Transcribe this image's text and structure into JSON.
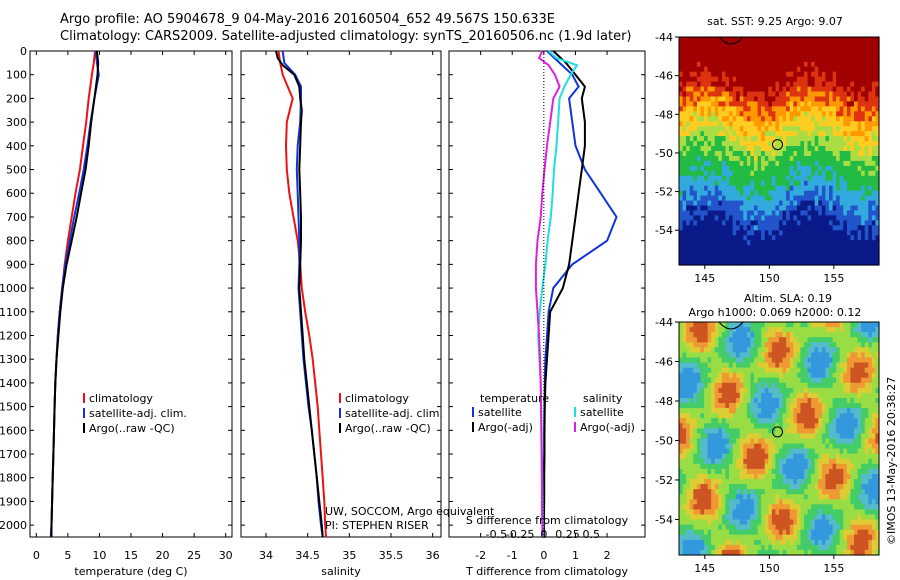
{
  "header": {
    "line1": "Argo profile: AO 5904678_9 04-May-2016 20160504_652 49.567S 150.633E",
    "line2": "Climatology: CARS2009. Satellite-adjusted climatology: synTS_20160506.nc (1.9d later)"
  },
  "footer": {
    "credit1": "UW, SOCCOM, Argo equivalent",
    "credit2": "PI: STEPHEN RISER",
    "stamp": "©IMOS 13-May-2016 20:38:27"
  },
  "colors": {
    "climatology": "#ee1111",
    "satellite": "#1133dd",
    "argo": "#000000",
    "satellite_salinity": "#22dddd",
    "argo_salinity": "#dd22dd"
  },
  "chart_data": [
    {
      "type": "line",
      "id": "temperature",
      "xlabel": "temperature (deg C)",
      "xlim": [
        -1,
        31
      ],
      "xticks": [
        0,
        5,
        10,
        15,
        20,
        25,
        30
      ],
      "ylim": [
        2050,
        0
      ],
      "yticks": [
        0,
        100,
        200,
        300,
        400,
        500,
        600,
        700,
        800,
        900,
        1000,
        1100,
        1200,
        1300,
        1400,
        1500,
        1600,
        1700,
        1800,
        1900,
        2000
      ],
      "legend": {
        "position": "center-left",
        "entries": [
          "climatology",
          "satellite-adj. clim.",
          "Argo(..raw -QC)"
        ]
      },
      "series": [
        {
          "name": "climatology",
          "color": "#ee1111",
          "depth": [
            0,
            50,
            100,
            200,
            300,
            400,
            500,
            600,
            700,
            800,
            900,
            1000,
            1100,
            1200,
            1300,
            1400,
            1500,
            1600,
            1700,
            1800,
            1900,
            2000,
            2050
          ],
          "values": [
            9.3,
            9.1,
            8.8,
            8.3,
            7.9,
            7.4,
            6.9,
            6.2,
            5.6,
            5.0,
            4.5,
            4.1,
            3.7,
            3.4,
            3.2,
            3.0,
            2.9,
            2.8,
            2.7,
            2.6,
            2.5,
            2.4,
            2.3
          ]
        },
        {
          "name": "satellite-adj. clim.",
          "color": "#1133dd",
          "depth": [
            0,
            50,
            100,
            200,
            300,
            400,
            500,
            600,
            700,
            800,
            900,
            1000,
            1100,
            1200,
            1300,
            1400,
            1500,
            1600,
            1700,
            1800,
            1900,
            2000,
            2050
          ],
          "values": [
            9.4,
            9.6,
            9.9,
            9.2,
            8.6,
            8.1,
            7.5,
            6.8,
            6.0,
            5.3,
            4.6,
            4.1,
            3.7,
            3.4,
            3.2,
            3.0,
            2.9,
            2.8,
            2.7,
            2.6,
            2.5,
            2.4,
            2.3
          ]
        },
        {
          "name": "Argo(..raw -QC)",
          "color": "#000000",
          "depth": [
            0,
            50,
            100,
            200,
            300,
            400,
            500,
            600,
            700,
            800,
            900,
            1000,
            1100,
            1200,
            1300,
            1400,
            1500,
            1600,
            1700,
            1800,
            1900,
            2000,
            2050
          ],
          "values": [
            9.6,
            9.8,
            9.7,
            9.2,
            8.7,
            8.3,
            7.8,
            7.1,
            6.4,
            5.6,
            4.8,
            4.2,
            3.8,
            3.5,
            3.2,
            3.0,
            2.9,
            2.8,
            2.7,
            2.6,
            2.5,
            2.4,
            2.4
          ]
        }
      ]
    },
    {
      "type": "line",
      "id": "salinity",
      "xlabel": "salinity",
      "xlim": [
        33.7,
        36.1
      ],
      "xticks": [
        34,
        34.5,
        35,
        35.5,
        36
      ],
      "ylim": [
        2050,
        0
      ],
      "legend": {
        "position": "center-left",
        "entries": [
          "climatology",
          "satellite-adj. clim.",
          "Argo(..raw -QC)"
        ]
      },
      "series": [
        {
          "name": "climatology",
          "color": "#ee1111",
          "depth": [
            0,
            50,
            100,
            150,
            200,
            300,
            400,
            500,
            600,
            700,
            800,
            900,
            1000,
            1100,
            1200,
            1300,
            1400,
            1500,
            1600,
            1700,
            1800,
            1900,
            2000,
            2050
          ],
          "values": [
            34.15,
            34.17,
            34.2,
            34.26,
            34.32,
            34.25,
            34.24,
            34.25,
            34.28,
            34.33,
            34.38,
            34.41,
            34.43,
            34.47,
            34.52,
            34.56,
            34.59,
            34.62,
            34.64,
            34.66,
            34.68,
            34.7,
            34.71,
            34.72
          ]
        },
        {
          "name": "satellite-adj. clim.",
          "color": "#1133dd",
          "depth": [
            0,
            50,
            100,
            150,
            200,
            300,
            400,
            500,
            600,
            700,
            800,
            900,
            1000,
            1100,
            1200,
            1300,
            1400,
            1500,
            1600,
            1700,
            1800,
            1900,
            2000,
            2050
          ],
          "values": [
            34.2,
            34.22,
            34.35,
            34.42,
            34.42,
            34.41,
            34.38,
            34.37,
            34.38,
            34.39,
            34.4,
            34.4,
            34.39,
            34.41,
            34.43,
            34.45,
            34.48,
            34.51,
            34.55,
            34.58,
            34.61,
            34.63,
            34.66,
            34.68
          ]
        },
        {
          "name": "Argo(..raw -QC)",
          "color": "#000000",
          "depth": [
            0,
            30,
            60,
            100,
            150,
            200,
            250,
            300,
            400,
            500,
            600,
            700,
            800,
            900,
            1000,
            1100,
            1200,
            1300,
            1400,
            1500,
            1600,
            1700,
            1800,
            1900,
            2000,
            2050
          ],
          "values": [
            34.12,
            34.14,
            34.2,
            34.34,
            34.4,
            34.41,
            34.43,
            34.42,
            34.41,
            34.4,
            34.41,
            34.42,
            34.42,
            34.41,
            34.4,
            34.42,
            34.44,
            34.46,
            34.49,
            34.52,
            34.55,
            34.58,
            34.61,
            34.64,
            34.67,
            34.68
          ]
        }
      ]
    },
    {
      "type": "line",
      "id": "difference",
      "xlabel": "T difference from climatology",
      "xlabel_top": "S difference from climatology",
      "xlim": [
        -3,
        3.2
      ],
      "xticks": [
        -2,
        -1,
        0,
        1,
        2
      ],
      "xticks_top": [
        {
          "pos": -1.5,
          "label": "-0.5"
        },
        {
          "pos": -0.75,
          "label": "-0.25"
        },
        {
          "pos": 0,
          "label": "0"
        },
        {
          "pos": 0.75,
          "label": "0.25"
        },
        {
          "pos": 1.5,
          "label": "0.5"
        }
      ],
      "ylim": [
        2050,
        0
      ],
      "legend_headings": [
        "temperature",
        "salinity"
      ],
      "legend": {
        "position": "center",
        "entries": [
          "satellite",
          "Argo(-adj)",
          "satellite",
          "Argo(-adj)"
        ]
      },
      "series": [
        {
          "name": "satellite",
          "color": "#1133dd",
          "depth": [
            0,
            50,
            100,
            150,
            200,
            300,
            400,
            500,
            600,
            700,
            800,
            900,
            1000,
            1100,
            1200,
            1300,
            1400,
            1500,
            1600,
            1700,
            1800,
            1900,
            2000,
            2050
          ],
          "values": [
            0.1,
            0.5,
            0.9,
            1.1,
            0.8,
            0.9,
            1.0,
            1.3,
            1.8,
            2.3,
            2.0,
            0.9,
            0.3,
            0.15,
            0.1,
            0.05,
            0.03,
            0.02,
            0.01,
            0.01,
            0.0,
            0.0,
            0.0,
            0.0
          ]
        },
        {
          "name": "Argo(-adj)",
          "color": "#000000",
          "depth": [
            0,
            50,
            100,
            150,
            200,
            300,
            400,
            500,
            600,
            700,
            800,
            900,
            1000,
            1100,
            1200,
            1300,
            1400,
            1500,
            1600,
            1700,
            1800,
            1900,
            2000,
            2050
          ],
          "values": [
            0.3,
            0.7,
            1.0,
            1.3,
            1.2,
            1.3,
            1.3,
            1.2,
            1.1,
            1.0,
            0.9,
            0.8,
            0.6,
            0.2,
            0.15,
            0.1,
            0.05,
            0.03,
            0.02,
            0.02,
            0.01,
            0.01,
            0.0,
            0.0
          ]
        },
        {
          "name": "satellite",
          "color": "#22dddd",
          "depth": [
            0,
            30,
            60,
            100,
            150,
            200,
            300,
            400,
            500,
            600,
            700,
            800,
            900,
            1000,
            1100,
            1200,
            1300,
            1400,
            1500,
            1600,
            1700,
            1800,
            1900,
            2000,
            2050
          ],
          "values": [
            0.15,
            0.4,
            1.05,
            0.85,
            0.65,
            0.5,
            0.45,
            0.4,
            0.32,
            0.28,
            0.22,
            0.12,
            0.05,
            -0.05,
            -0.13,
            -0.18,
            -0.14,
            -0.1,
            -0.08,
            -0.07,
            -0.06,
            -0.05,
            -0.04,
            -0.03,
            -0.03
          ]
        },
        {
          "name": "Argo(-adj)",
          "color": "#dd22dd",
          "depth": [
            0,
            30,
            60,
            100,
            150,
            200,
            300,
            400,
            500,
            600,
            700,
            800,
            900,
            1000,
            1100,
            1200,
            1300,
            1400,
            1500,
            1600,
            1700,
            1800,
            1900,
            2000,
            2050
          ],
          "values": [
            -0.05,
            -0.15,
            0.15,
            0.35,
            0.5,
            0.3,
            0.2,
            0.1,
            0.02,
            -0.05,
            -0.1,
            -0.2,
            -0.25,
            -0.25,
            -0.2,
            -0.15,
            -0.12,
            -0.1,
            -0.09,
            -0.08,
            -0.07,
            -0.06,
            -0.06,
            -0.05,
            -0.05
          ]
        }
      ]
    },
    {
      "type": "heatmap",
      "id": "sst_map",
      "title": "sat. SST: 9.25  Argo: 9.07",
      "xlim": [
        143,
        158.5
      ],
      "ylim": [
        -55.8,
        -44
      ],
      "xticks": [
        145,
        150,
        155
      ],
      "yticks": [
        -44,
        -46,
        -48,
        -50,
        -52,
        -54
      ],
      "marker": {
        "lon": 150.633,
        "lat": -49.567
      }
    },
    {
      "type": "heatmap",
      "id": "sla_map",
      "title": "Altim. SLA: 0.19",
      "subtitle": "Argo h1000: 0.069  h2000: 0.12",
      "xlim": [
        143,
        158.5
      ],
      "ylim": [
        -55.8,
        -44
      ],
      "xticks": [
        145,
        150,
        155
      ],
      "yticks": [
        -44,
        -46,
        -48,
        -50,
        -52,
        -54
      ],
      "marker": {
        "lon": 150.633,
        "lat": -49.567
      }
    }
  ]
}
